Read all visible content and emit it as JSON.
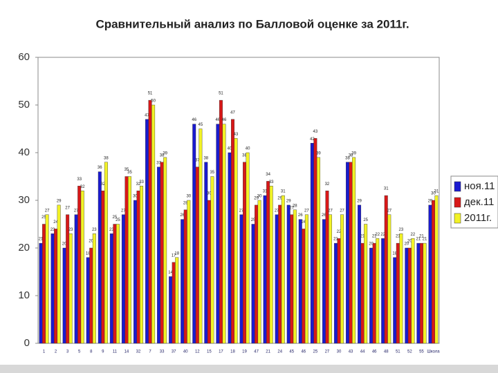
{
  "chart_data": {
    "type": "bar",
    "title": "Сравнительный анализ по Балловой оценке за 2011г.",
    "categories": [
      "1",
      "2",
      "3",
      "5",
      "8",
      "9",
      "11",
      "14",
      "32",
      "7",
      "33",
      "37",
      "40",
      "12",
      "15",
      "17",
      "18",
      "19",
      "47",
      "21",
      "24",
      "45",
      "46",
      "25",
      "27",
      "30",
      "43",
      "44",
      "46",
      "48",
      "51",
      "52",
      "55",
      "Школа"
    ],
    "series": [
      {
        "name": "ноя.11",
        "color": "#1a1ad0",
        "values": [
          21,
          23,
          20,
          27,
          18,
          36,
          23,
          27,
          30,
          47,
          37,
          14,
          26,
          46,
          38,
          46,
          40,
          27,
          25,
          31,
          27,
          29,
          26,
          42,
          26,
          21,
          38,
          29,
          20,
          22,
          18,
          20,
          21,
          29
        ]
      },
      {
        "name": "дек.11",
        "color": "#d81818",
        "values": [
          25,
          24,
          27,
          33,
          20,
          32,
          25,
          35,
          32,
          51,
          38,
          17,
          28,
          37,
          30,
          51,
          47,
          38,
          29,
          34,
          29,
          27,
          24,
          43,
          32,
          22,
          38,
          21,
          21,
          31,
          21,
          20,
          21,
          30
        ]
      },
      {
        "name": "2011г.",
        "color": "#f2f226",
        "values": [
          27,
          29,
          23,
          32,
          23,
          38,
          25,
          35,
          33,
          50,
          39,
          18,
          30,
          45,
          35,
          46,
          43,
          40,
          30,
          33,
          31,
          28,
          27,
          39,
          27,
          27,
          39,
          25,
          22,
          27,
          23,
          22,
          21,
          31
        ]
      }
    ],
    "ylim": [
      0,
      60
    ],
    "yticks": [
      0,
      10,
      20,
      30,
      40,
      50,
      60
    ],
    "legend": "right"
  }
}
